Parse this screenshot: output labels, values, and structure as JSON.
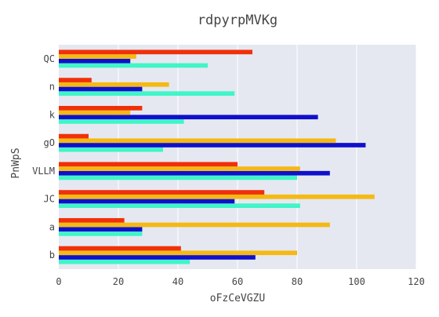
{
  "chart_data": {
    "type": "bar",
    "orientation": "horizontal",
    "title": "rdpyrpMVKg",
    "xlabel": "oFzCeVGZU",
    "ylabel": "PnWpS",
    "xlim": [
      0,
      120
    ],
    "xticks": [
      0,
      20,
      40,
      60,
      80,
      100,
      120
    ],
    "grid": true,
    "legend": "none",
    "categories": [
      "b",
      "a",
      "JC",
      "VLLM",
      "gO",
      "k",
      "n",
      "QC"
    ],
    "series": [
      {
        "color": "#40f5c8",
        "values": [
          44,
          28,
          81,
          80,
          35,
          42,
          59,
          50
        ]
      },
      {
        "color": "#1010cc",
        "values": [
          66,
          28,
          59,
          91,
          103,
          87,
          28,
          24
        ]
      },
      {
        "color": "#f5b914",
        "values": [
          80,
          91,
          106,
          81,
          93,
          24,
          37,
          26
        ]
      },
      {
        "color": "#f0300a",
        "values": [
          41,
          22,
          69,
          60,
          10,
          28,
          11,
          65
        ]
      }
    ]
  }
}
